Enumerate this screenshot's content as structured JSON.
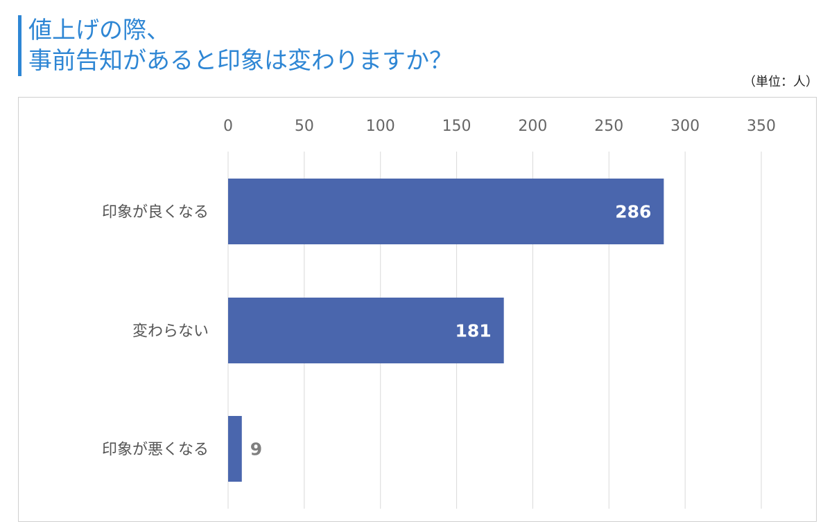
{
  "title": {
    "line1": "値上げの際、",
    "line2": "事前告知があると印象は変わりますか？"
  },
  "unit_label": "（単位：人）",
  "colors": {
    "title": "#2e86d4",
    "bar": "#4a66ad",
    "grid": "#d9d9d9"
  },
  "chart_data": {
    "type": "bar",
    "orientation": "horizontal",
    "categories": [
      "印象が良くなる",
      "変わらない",
      "印象が悪くなる"
    ],
    "values": [
      286,
      181,
      9
    ],
    "xlim": [
      0,
      350
    ],
    "xticks": [
      0,
      50,
      100,
      150,
      200,
      250,
      300,
      350
    ],
    "axis_position": "top",
    "grid": true,
    "legend": "none",
    "data_labels": [
      "286",
      "181",
      "9"
    ]
  }
}
